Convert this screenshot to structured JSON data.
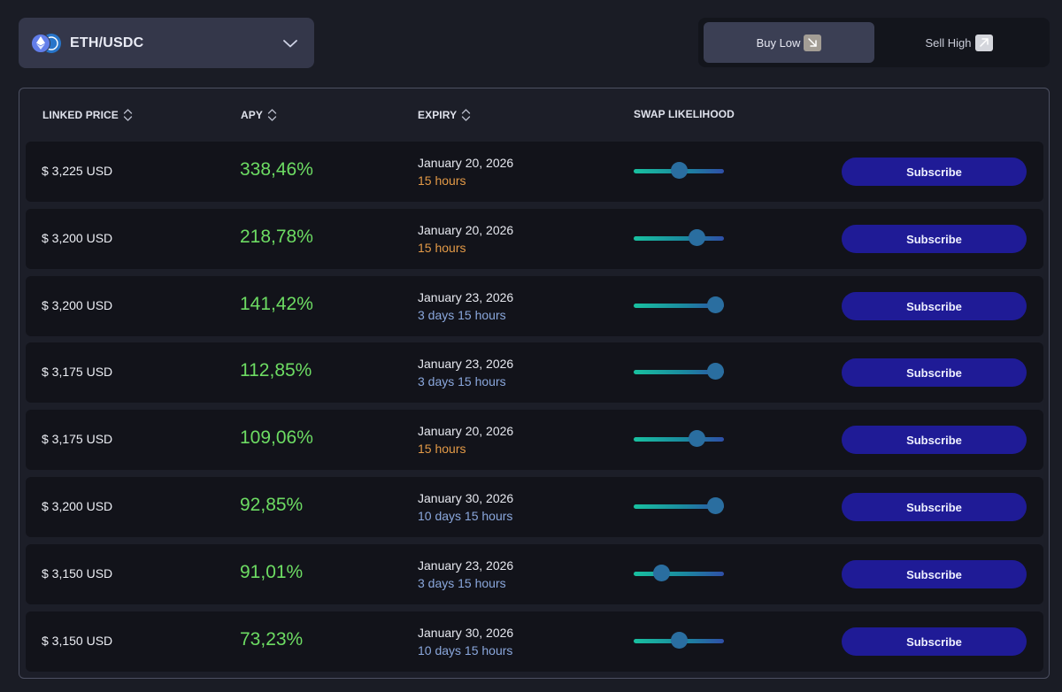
{
  "pair": {
    "label": "ETH/USDC",
    "icons": [
      "eth-icon",
      "usdc-icon"
    ]
  },
  "side_toggle": {
    "buy_label": "Buy Low",
    "sell_label": "Sell High",
    "selected": "buy"
  },
  "table": {
    "headers": {
      "linked_price": "LINKED PRICE",
      "apy": "APY",
      "expiry": "EXPIRY",
      "swap_likelihood": "SWAP LIKELIHOOD"
    },
    "subscribe_label": "Subscribe",
    "rows": [
      {
        "price": "$ 3,225 USD",
        "apy": "338,46%",
        "expiry_date": "January 20, 2026",
        "time_left": "15 hours",
        "likelihood": 0.5
      },
      {
        "price": "$ 3,200 USD",
        "apy": "218,78%",
        "expiry_date": "January 20, 2026",
        "time_left": "15 hours",
        "likelihood": 0.7
      },
      {
        "price": "$ 3,200 USD",
        "apy": "141,42%",
        "expiry_date": "January 23, 2026",
        "time_left": "3 days 15 hours",
        "likelihood": 0.9
      },
      {
        "price": "$ 3,175 USD",
        "apy": "112,85%",
        "expiry_date": "January 23, 2026",
        "time_left": "3 days 15 hours",
        "likelihood": 0.9
      },
      {
        "price": "$ 3,175 USD",
        "apy": "109,06%",
        "expiry_date": "January 20, 2026",
        "time_left": "15 hours",
        "likelihood": 0.7
      },
      {
        "price": "$ 3,200 USD",
        "apy": "92,85%",
        "expiry_date": "January 30, 2026",
        "time_left": "10 days 15 hours",
        "likelihood": 0.9
      },
      {
        "price": "$ 3,150 USD",
        "apy": "91,01%",
        "expiry_date": "January 23, 2026",
        "time_left": "3 days 15 hours",
        "likelihood": 0.3
      },
      {
        "price": "$ 3,150 USD",
        "apy": "73,23%",
        "expiry_date": "January 30, 2026",
        "time_left": "10 days 15 hours",
        "likelihood": 0.5
      }
    ]
  },
  "colors": {
    "background": "#1a1c25",
    "apy_green": "#6ddc63",
    "time_soon": "#e39a47",
    "time_later": "#8aa7dc",
    "subscribe_bg": "#1f1b96"
  }
}
